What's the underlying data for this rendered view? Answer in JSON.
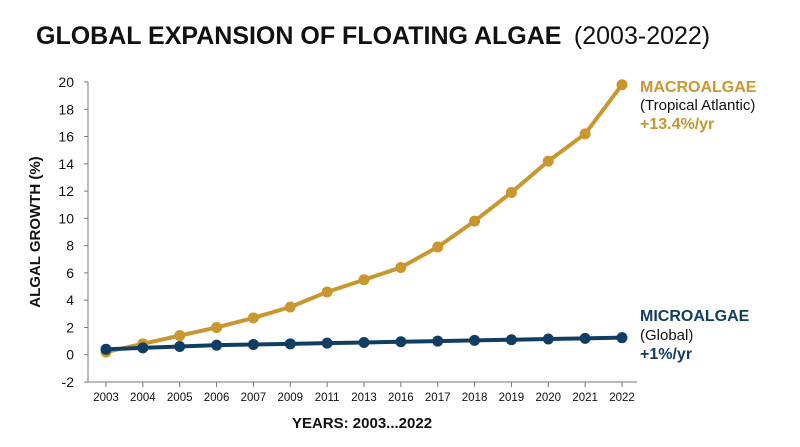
{
  "chart_data": {
    "type": "line",
    "title": "GLOBAL EXPANSION OF FLOATING ALGAE",
    "title_range": "(2003-2022)",
    "xlabel": "YEARS: 2003...2022",
    "ylabel": "ALGAL GROWTH (%)",
    "categories": [
      "2003",
      "2004",
      "2005",
      "2006",
      "2007",
      "2009",
      "2011",
      "2013",
      "2016",
      "2017",
      "2018",
      "2019",
      "2020",
      "2021",
      "2022"
    ],
    "yticks": [
      "-2",
      "0",
      "2",
      "4",
      "6",
      "8",
      "10",
      "12",
      "14",
      "16",
      "18",
      "20"
    ],
    "ylim": [
      -2,
      20
    ],
    "grid": false,
    "series": [
      {
        "name": "MACROALGAE",
        "subtitle": "(Tropical Atlantic)",
        "rate": "+13.4%/yr",
        "color": "#C9962F",
        "values": [
          0.2,
          0.8,
          1.4,
          2.0,
          2.7,
          3.5,
          4.6,
          5.5,
          6.4,
          7.9,
          9.8,
          11.9,
          14.2,
          16.2,
          19.8
        ]
      },
      {
        "name": "MICROALGAE",
        "subtitle": "(Global)",
        "rate": "+1%/yr",
        "color": "#123D63",
        "values": [
          0.4,
          0.5,
          0.6,
          0.7,
          0.75,
          0.8,
          0.85,
          0.9,
          0.95,
          1.0,
          1.05,
          1.1,
          1.15,
          1.2,
          1.25
        ]
      }
    ]
  }
}
